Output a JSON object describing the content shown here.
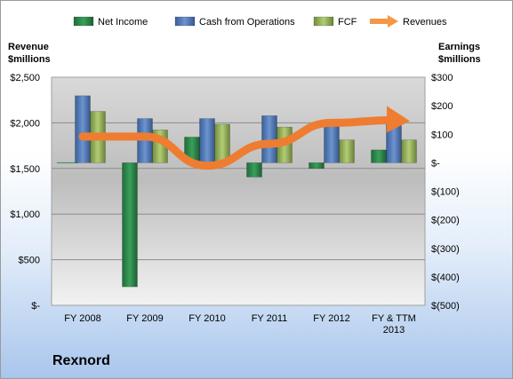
{
  "company": "Rexnord",
  "legend": [
    {
      "label": "Net Income",
      "type": "bar",
      "color": "#2e8b57"
    },
    {
      "label": "Cash from Operations",
      "type": "bar",
      "color": "#4f81bd"
    },
    {
      "label": "FCF",
      "type": "bar",
      "color": "#9bbb59"
    },
    {
      "label": "Revenues",
      "type": "arrow",
      "color": "#f79646"
    }
  ],
  "chart_data": {
    "type": "bar",
    "categories": [
      "FY 2008",
      "FY 2009",
      "FY 2010",
      "FY 2011",
      "FY 2012",
      "FY & TTM 2013"
    ],
    "y_left": {
      "label_line1": "Revenue",
      "label_line2": "$millions",
      "range": [
        0,
        2500
      ],
      "ticks": [
        0,
        500,
        1000,
        1500,
        2000,
        2500
      ],
      "tick_labels": [
        "$-",
        "$500",
        "$1,000",
        "$1,500",
        "$2,000",
        "$2,500"
      ]
    },
    "y_right": {
      "label_line1": "Earnings",
      "label_line2": "$millions",
      "range": [
        -500,
        300
      ],
      "ticks": [
        300,
        200,
        100,
        0,
        -100,
        -200,
        -300,
        -400,
        -500
      ],
      "tick_labels": [
        "$300",
        "$200",
        "$100",
        "$-",
        "$(100)",
        "$(200)",
        "$(300)",
        "$(400)",
        "$(500)"
      ]
    },
    "series": [
      {
        "name": "Net Income",
        "axis": "right",
        "values": [
          0,
          -435,
          90,
          -50,
          -20,
          45
        ]
      },
      {
        "name": "Cash from Operations",
        "axis": "right",
        "values": [
          235,
          155,
          155,
          165,
          140,
          145
        ]
      },
      {
        "name": "FCF",
        "axis": "right",
        "values": [
          180,
          115,
          135,
          125,
          80,
          80
        ]
      },
      {
        "name": "Revenues",
        "axis": "left",
        "values": [
          1850,
          1850,
          1530,
          1770,
          2000,
          2030
        ]
      }
    ],
    "grid": true
  }
}
